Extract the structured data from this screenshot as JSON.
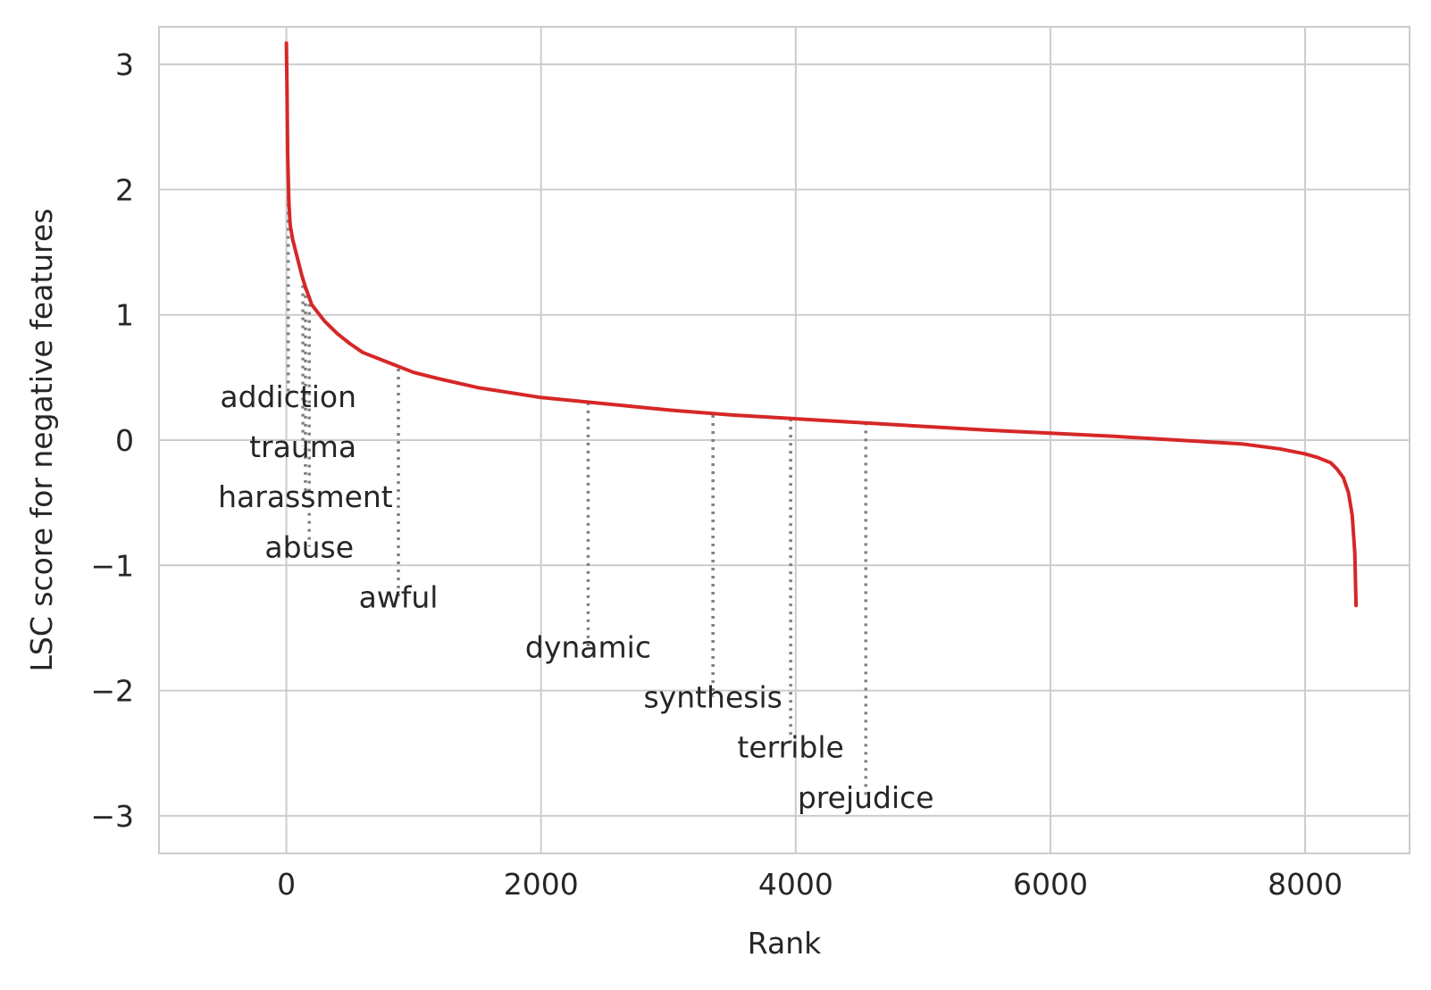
{
  "chart_data": {
    "type": "line",
    "title": "",
    "xlabel": "Rank",
    "ylabel": "LSC score for negative features",
    "xlim": [
      -1000,
      8820
    ],
    "ylim": [
      -3.3,
      3.3
    ],
    "xticks": [
      0,
      2000,
      4000,
      6000,
      8000
    ],
    "xtick_labels": [
      "0",
      "2000",
      "4000",
      "6000",
      "8000"
    ],
    "yticks": [
      -3,
      -2,
      -1,
      0,
      1,
      2,
      3
    ],
    "ytick_labels": [
      "−3",
      "−2",
      "−1",
      "0",
      "1",
      "2",
      "3"
    ],
    "grid": true,
    "series": [
      {
        "color": "#d62728",
        "x": [
          0,
          5,
          10,
          20,
          30,
          50,
          80,
          120,
          150,
          200,
          300,
          400,
          500,
          600,
          800,
          1000,
          1200,
          1500,
          2000,
          2500,
          3000,
          3500,
          4000,
          4500,
          5000,
          5500,
          6000,
          6500,
          7000,
          7500,
          7800,
          8000,
          8100,
          8200,
          8250,
          8300,
          8340,
          8370,
          8390,
          8400
        ],
        "y": [
          3.17,
          2.8,
          2.3,
          1.9,
          1.72,
          1.6,
          1.48,
          1.32,
          1.22,
          1.08,
          0.95,
          0.85,
          0.77,
          0.7,
          0.62,
          0.54,
          0.49,
          0.42,
          0.34,
          0.29,
          0.24,
          0.2,
          0.17,
          0.14,
          0.11,
          0.08,
          0.055,
          0.03,
          0.0,
          -0.03,
          -0.07,
          -0.11,
          -0.14,
          -0.18,
          -0.23,
          -0.3,
          -0.42,
          -0.6,
          -0.9,
          -1.32
        ]
      }
    ],
    "annotations": [
      {
        "label": "addiction",
        "x": 15,
        "y_curve": 1.95,
        "y_text": 0.35
      },
      {
        "label": "trauma",
        "x": 130,
        "y_curve": 1.3,
        "y_text": -0.05
      },
      {
        "label": "harassment",
        "x": 150,
        "y_curve": 1.22,
        "y_text": -0.45
      },
      {
        "label": "abuse",
        "x": 180,
        "y_curve": 1.15,
        "y_text": -0.85
      },
      {
        "label": "awful",
        "x": 880,
        "y_curve": 0.57,
        "y_text": -1.25
      },
      {
        "label": "dynamic",
        "x": 2370,
        "y_curve": 0.3,
        "y_text": -1.65
      },
      {
        "label": "synthesis",
        "x": 3350,
        "y_curve": 0.2,
        "y_text": -2.05
      },
      {
        "label": "terrible",
        "x": 3960,
        "y_curve": 0.17,
        "y_text": -2.45
      },
      {
        "label": "prejudice",
        "x": 4550,
        "y_curve": 0.14,
        "y_text": -2.85
      }
    ]
  }
}
